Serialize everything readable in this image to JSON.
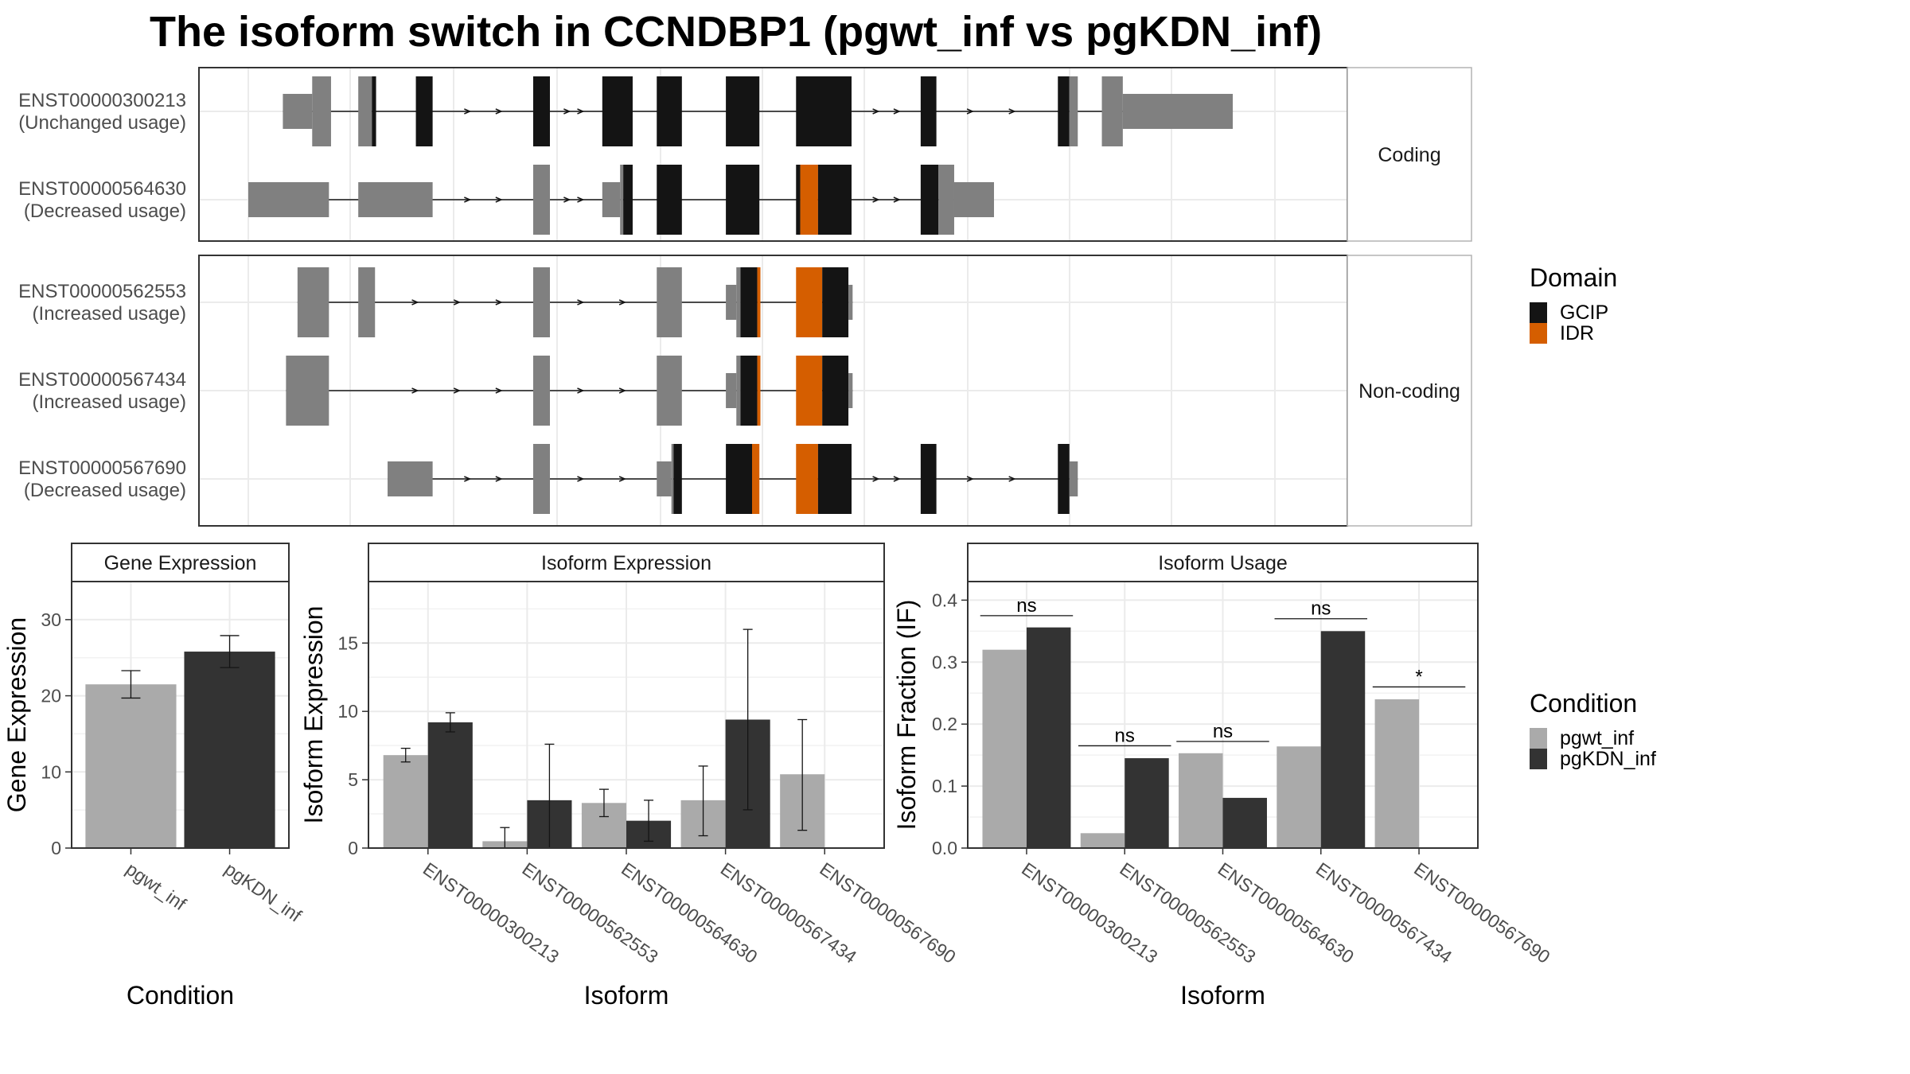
{
  "title": "The isoform switch in CCNDBP1 (pgwt_inf vs pgKDN_inf)",
  "colors": {
    "gcip": "#141414",
    "idr": "#d55e00",
    "noncoding": "#808080",
    "pgwt_inf": "#aaaaaa",
    "pgKDN_inf": "#333333",
    "grid": "#ebebeb"
  },
  "structure": {
    "coord_range": [
      0,
      1000
    ],
    "groups": [
      {
        "label": "Coding",
        "isoforms": [
          {
            "id": "ENST00000300213",
            "usage": "(Unchanged usage)",
            "segments": [
              {
                "s": 33,
                "e": 61,
                "t": "utr"
              },
              {
                "s": 61,
                "e": 79,
                "t": "nc"
              },
              {
                "s": 105,
                "e": 118,
                "t": "nc"
              },
              {
                "s": 118,
                "e": 122,
                "t": "gcip"
              },
              {
                "s": 160,
                "e": 176,
                "t": "gcip"
              },
              {
                "s": 272,
                "e": 288,
                "t": "gcip"
              },
              {
                "s": 338,
                "e": 367,
                "t": "gcip"
              },
              {
                "s": 390,
                "e": 414,
                "t": "gcip"
              },
              {
                "s": 456,
                "e": 488,
                "t": "gcip"
              },
              {
                "s": 523,
                "e": 576,
                "t": "gcip"
              },
              {
                "s": 642,
                "e": 657,
                "t": "gcip"
              },
              {
                "s": 773,
                "e": 784,
                "t": "gcip"
              },
              {
                "s": 784,
                "e": 792,
                "t": "nc"
              },
              {
                "s": 815,
                "e": 835,
                "t": "nc"
              },
              {
                "s": 835,
                "e": 940,
                "t": "utr"
              }
            ],
            "arrows": [
              210,
              240,
              305,
              318,
              600,
              620,
              690,
              730
            ]
          },
          {
            "id": "ENST00000564630",
            "usage": "(Decreased usage)",
            "segments": [
              {
                "s": 0,
                "e": 77,
                "t": "utr"
              },
              {
                "s": 105,
                "e": 176,
                "t": "utr"
              },
              {
                "s": 272,
                "e": 288,
                "t": "nc"
              },
              {
                "s": 338,
                "e": 355,
                "t": "utr"
              },
              {
                "s": 355,
                "e": 358,
                "t": "nc"
              },
              {
                "s": 358,
                "e": 367,
                "t": "gcip"
              },
              {
                "s": 390,
                "e": 414,
                "t": "gcip"
              },
              {
                "s": 456,
                "e": 488,
                "t": "gcip"
              },
              {
                "s": 523,
                "e": 527,
                "t": "gcip"
              },
              {
                "s": 527,
                "e": 544,
                "t": "idr"
              },
              {
                "s": 544,
                "e": 576,
                "t": "gcip"
              },
              {
                "s": 642,
                "e": 659,
                "t": "gcip"
              },
              {
                "s": 659,
                "e": 674,
                "t": "nc"
              },
              {
                "s": 674,
                "e": 712,
                "t": "utr"
              }
            ],
            "arrows": [
              210,
              240,
              305,
              318,
              600,
              620
            ]
          }
        ]
      },
      {
        "label": "Non-coding",
        "isoforms": [
          {
            "id": "ENST00000562553",
            "usage": "(Increased usage)",
            "segments": [
              {
                "s": 47,
                "e": 77,
                "t": "nc"
              },
              {
                "s": 105,
                "e": 121,
                "t": "nc"
              },
              {
                "s": 272,
                "e": 288,
                "t": "nc"
              },
              {
                "s": 390,
                "e": 414,
                "t": "nc"
              },
              {
                "s": 456,
                "e": 466,
                "t": "utr"
              },
              {
                "s": 466,
                "e": 470,
                "t": "nc"
              },
              {
                "s": 470,
                "e": 486,
                "t": "gcip"
              },
              {
                "s": 486,
                "e": 489,
                "t": "idr"
              },
              {
                "s": 523,
                "e": 548,
                "t": "idr"
              },
              {
                "s": 548,
                "e": 573,
                "t": "gcip"
              },
              {
                "s": 573,
                "e": 577,
                "t": "utr"
              }
            ],
            "arrows": [
              160,
              200,
              240,
              318,
              358
            ]
          },
          {
            "id": "ENST00000567434",
            "usage": "(Increased usage)",
            "segments": [
              {
                "s": 36,
                "e": 77,
                "t": "nc"
              },
              {
                "s": 272,
                "e": 288,
                "t": "nc"
              },
              {
                "s": 390,
                "e": 414,
                "t": "nc"
              },
              {
                "s": 456,
                "e": 466,
                "t": "utr"
              },
              {
                "s": 466,
                "e": 470,
                "t": "nc"
              },
              {
                "s": 470,
                "e": 486,
                "t": "gcip"
              },
              {
                "s": 486,
                "e": 489,
                "t": "idr"
              },
              {
                "s": 523,
                "e": 548,
                "t": "idr"
              },
              {
                "s": 548,
                "e": 573,
                "t": "gcip"
              },
              {
                "s": 573,
                "e": 577,
                "t": "utr"
              }
            ],
            "arrows": [
              160,
              200,
              240,
              318,
              358
            ]
          },
          {
            "id": "ENST00000567690",
            "usage": "(Decreased usage)",
            "segments": [
              {
                "s": 133,
                "e": 176,
                "t": "utr"
              },
              {
                "s": 272,
                "e": 288,
                "t": "nc"
              },
              {
                "s": 390,
                "e": 404,
                "t": "utr"
              },
              {
                "s": 404,
                "e": 406,
                "t": "nc"
              },
              {
                "s": 406,
                "e": 414,
                "t": "gcip"
              },
              {
                "s": 456,
                "e": 481,
                "t": "gcip"
              },
              {
                "s": 481,
                "e": 488,
                "t": "idr"
              },
              {
                "s": 523,
                "e": 544,
                "t": "idr"
              },
              {
                "s": 544,
                "e": 576,
                "t": "gcip"
              },
              {
                "s": 642,
                "e": 657,
                "t": "gcip"
              },
              {
                "s": 773,
                "e": 784,
                "t": "gcip"
              },
              {
                "s": 784,
                "e": 792,
                "t": "utr"
              }
            ],
            "arrows": [
              210,
              240,
              318,
              358,
              600,
              620,
              690,
              730
            ]
          }
        ]
      }
    ]
  },
  "legend_domain": {
    "title": "Domain",
    "items": [
      {
        "label": "GCIP",
        "color": "#141414"
      },
      {
        "label": "IDR",
        "color": "#d55e00"
      }
    ]
  },
  "legend_condition": {
    "title": "Condition",
    "items": [
      {
        "label": "pgwt_inf",
        "color": "#aaaaaa"
      },
      {
        "label": "pgKDN_inf",
        "color": "#333333"
      }
    ]
  },
  "chart_data": [
    {
      "type": "bar",
      "title": "Gene Expression",
      "xlabel": "Condition",
      "ylabel": "Gene Expression",
      "ylim": [
        0,
        35
      ],
      "yticks": [
        0,
        10,
        20,
        30
      ],
      "categories": [
        "pgwt_inf",
        "pgKDN_inf"
      ],
      "values": [
        21.5,
        25.8
      ],
      "error_low": [
        19.7,
        23.7
      ],
      "error_high": [
        23.3,
        27.9
      ]
    },
    {
      "type": "bar",
      "title": "Isoform Expression",
      "xlabel": "Isoform",
      "ylabel": "Isoform Expression",
      "ylim": [
        0,
        19.5
      ],
      "yticks": [
        0,
        5,
        10,
        15
      ],
      "categories": [
        "ENST00000300213",
        "ENST00000562553",
        "ENST00000564630",
        "ENST00000567434",
        "ENST00000567690"
      ],
      "series": [
        {
          "name": "pgwt_inf",
          "values": [
            6.8,
            0.5,
            3.3,
            3.5,
            5.4
          ],
          "error_low": [
            6.3,
            0.0,
            2.3,
            0.9,
            1.3
          ],
          "error_high": [
            7.3,
            1.5,
            4.3,
            6.0,
            9.4
          ]
        },
        {
          "name": "pgKDN_inf",
          "values": [
            9.2,
            3.5,
            2.0,
            9.4,
            0.0
          ],
          "error_low": [
            8.5,
            0.0,
            0.5,
            2.8,
            0.0
          ],
          "error_high": [
            9.9,
            7.6,
            3.5,
            16.0,
            0.0
          ]
        }
      ]
    },
    {
      "type": "bar",
      "title": "Isoform Usage",
      "xlabel": "Isoform",
      "ylabel": "Isoform Fraction (IF)",
      "ylim": [
        0,
        0.43
      ],
      "yticks": [
        0.0,
        0.1,
        0.2,
        0.3,
        0.4
      ],
      "ytick_labels": [
        "0.0",
        "0.1",
        "0.2",
        "0.3",
        "0.4"
      ],
      "categories": [
        "ENST00000300213",
        "ENST00000562553",
        "ENST00000564630",
        "ENST00000567434",
        "ENST00000567690"
      ],
      "series": [
        {
          "name": "pgwt_inf",
          "values": [
            0.32,
            0.024,
            0.153,
            0.164,
            0.24
          ]
        },
        {
          "name": "pgKDN_inf",
          "values": [
            0.356,
            0.145,
            0.081,
            0.35,
            0.0
          ]
        }
      ],
      "significance": [
        "ns",
        "ns",
        "ns",
        "ns",
        "*"
      ],
      "sig_y": [
        0.375,
        0.165,
        0.172,
        0.37,
        0.26
      ]
    }
  ]
}
